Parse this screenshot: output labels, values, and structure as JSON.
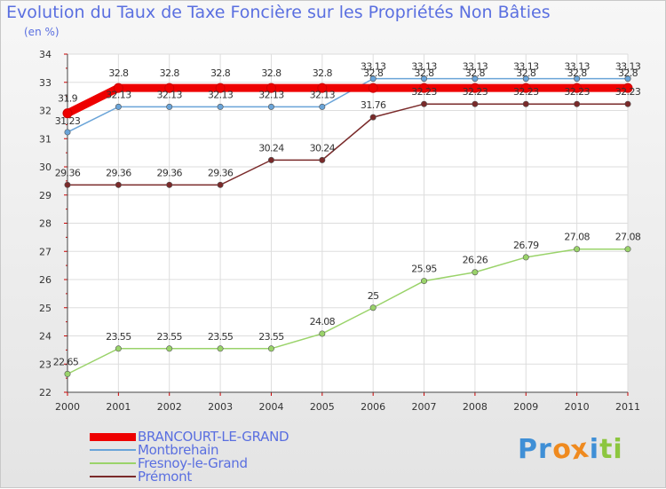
{
  "title": "Evolution du Taux de Taxe Foncière sur les Propriétés Non Bâties",
  "unit_label": "(en %)",
  "logo": {
    "text": "Proxiti",
    "letters": [
      "P",
      "r",
      "o",
      "x",
      "i",
      "t",
      "i"
    ],
    "letter_colors": [
      "#3f8fd6",
      "#3f8fd6",
      "#ef8a1f",
      "#ef8a1f",
      "#3f8fd6",
      "#8cc63f",
      "#8cc63f"
    ]
  },
  "chart_data": {
    "type": "line",
    "title": "Evolution du Taux de Taxe Foncière sur les Propriétés Non Bâties",
    "ylabel": "(en %)",
    "xlabel": "",
    "ylim": [
      22,
      34
    ],
    "yticks": [
      22,
      23,
      24,
      25,
      26,
      27,
      28,
      29,
      30,
      31,
      32,
      33,
      34
    ],
    "grid": true,
    "legend_position": "bottom-left",
    "categories": [
      "2000",
      "2001",
      "2002",
      "2003",
      "2004",
      "2005",
      "2006",
      "2007",
      "2008",
      "2009",
      "2010",
      "2011"
    ],
    "series": [
      {
        "name": "BRANCOURT-LE-GRAND",
        "color": "#ee0000",
        "values": [
          31.9,
          32.8,
          32.8,
          32.8,
          32.8,
          32.8,
          32.8,
          32.8,
          32.8,
          32.8,
          32.8,
          32.8
        ],
        "labels": [
          "31.9",
          "32.8",
          "32.8",
          "32.8",
          "32.8",
          "32.8",
          "32.8",
          "32.8",
          "32.8",
          "32.8",
          "32.8",
          "32.8"
        ]
      },
      {
        "name": "Montbrehain",
        "color": "#6aa4d8",
        "values": [
          31.23,
          32.13,
          32.13,
          32.13,
          32.13,
          32.13,
          33.13,
          33.13,
          33.13,
          33.13,
          33.13,
          33.13
        ],
        "labels": [
          "31.23",
          "32.13",
          "32.13",
          "32.13",
          "32.13",
          "32.13",
          "33.13",
          "33.13",
          "33.13",
          "33.13",
          "33.13",
          "33.13"
        ]
      },
      {
        "name": "Fresnoy-le-Grand",
        "color": "#9ad36a",
        "values": [
          22.65,
          23.55,
          23.55,
          23.55,
          23.55,
          24.08,
          25,
          25.95,
          26.26,
          26.79,
          27.08,
          27.08
        ],
        "labels": [
          "22.65",
          "23.55",
          "23.55",
          "23.55",
          "23.55",
          "24.08",
          "25",
          "25.95",
          "26.26",
          "26.79",
          "27.08",
          "27.08"
        ]
      },
      {
        "name": "Prémont",
        "color": "#7a2a2a",
        "values": [
          29.36,
          29.36,
          29.36,
          29.36,
          30.24,
          30.24,
          31.76,
          32.23,
          32.23,
          32.23,
          32.23,
          32.23
        ],
        "labels": [
          "29.36",
          "29.36",
          "29.36",
          "29.36",
          "30.24",
          "30.24",
          "31.76",
          "32.23",
          "32.23",
          "32.23",
          "32.23",
          "32.23"
        ]
      }
    ]
  }
}
